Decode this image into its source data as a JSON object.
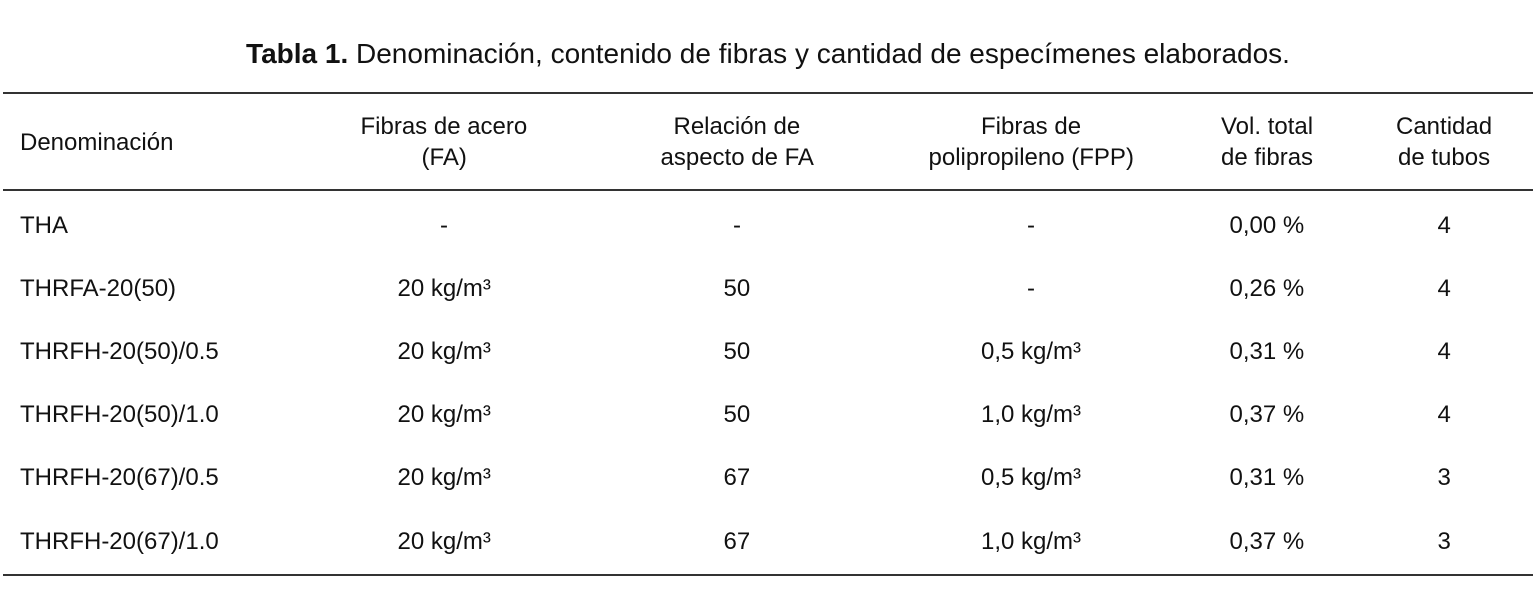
{
  "title": {
    "label": "Tabla 1.",
    "text": "Denominación, contenido de fibras y cantidad de especímenes elaborados."
  },
  "table": {
    "header": [
      [
        "Denominación"
      ],
      [
        "Fibras de acero",
        "(FA)"
      ],
      [
        "Relación de",
        "aspecto de FA"
      ],
      [
        "Fibras de",
        "polipropileno (FPP)"
      ],
      [
        "Vol. total",
        "de fibras"
      ],
      [
        "Cantidad",
        "de tubos"
      ]
    ],
    "rows": [
      [
        "THA",
        "-",
        "-",
        "-",
        "0,00 %",
        4
      ],
      [
        "THRFA-20(50)",
        "20 kg/m³",
        50,
        "-",
        "0,26 %",
        4
      ],
      [
        "THRFH-20(50)/0.5",
        "20 kg/m³",
        50,
        "0,5 kg/m³",
        "0,31 %",
        4
      ],
      [
        "THRFH-20(50)/1.0",
        "20 kg/m³",
        50,
        "1,0 kg/m³",
        "0,37 %",
        4
      ],
      [
        "THRFH-20(67)/0.5",
        "20 kg/m³",
        67,
        "0,5 kg/m³",
        "0,31 %",
        3
      ],
      [
        "THRFH-20(67)/1.0",
        "20 kg/m³",
        67,
        "1,0 kg/m³",
        "0,37 %",
        3
      ]
    ]
  }
}
